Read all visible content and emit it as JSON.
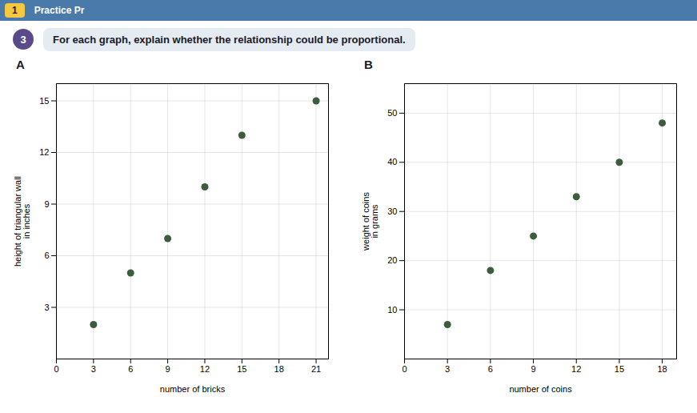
{
  "chart_data": [
    {
      "type": "scatter",
      "title": "A",
      "annotations": [
        "1",
        "Practice Pr",
        "3",
        "For each graph, explain whether the relationship could be proportional."
      ],
      "xlabel": "number of bricks",
      "ylabel": "height of triangular wall\nin inches",
      "x": [
        3,
        6,
        9,
        12,
        15,
        21
      ],
      "values": [
        2,
        5,
        7,
        10,
        13,
        15
      ],
      "color": "#3d5c3d",
      "xlim": [
        0,
        22
      ],
      "ylim": [
        0,
        16
      ],
      "xticks": [
        0,
        3,
        6,
        9,
        12,
        15,
        18,
        21
      ],
      "yticks": [
        3,
        6,
        9,
        12,
        15
      ],
      "grid": true
    },
    {
      "type": "scatter",
      "title": "B",
      "xlabel": "number of coins",
      "ylabel": "weight of coins\nin grams",
      "x": [
        3,
        6,
        9,
        12,
        15,
        18
      ],
      "values": [
        7,
        18,
        25,
        33,
        40,
        48
      ],
      "color": "#3d5c3d",
      "xlim": [
        0,
        19
      ],
      "ylim": [
        0,
        56
      ],
      "xticks": [
        0,
        3,
        6,
        9,
        12,
        15,
        18
      ],
      "yticks": [
        10,
        20,
        30,
        40,
        50
      ],
      "grid": true
    }
  ]
}
